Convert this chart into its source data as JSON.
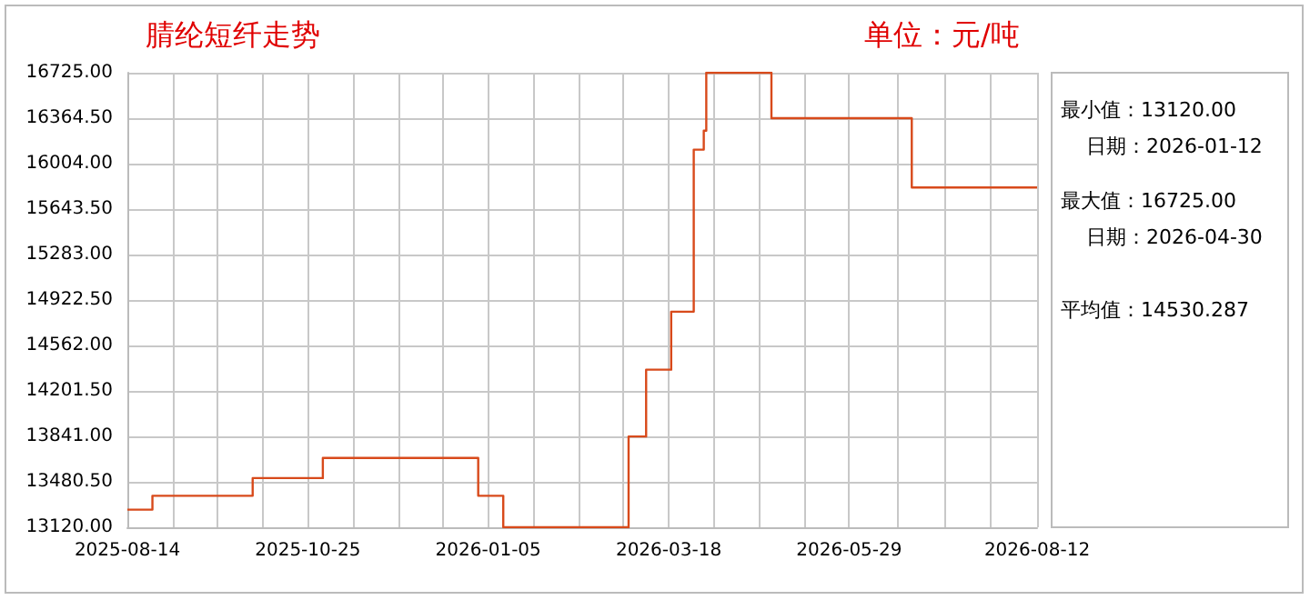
{
  "chart_data": {
    "type": "step",
    "title": "腈纶短纤走势",
    "subtitle": "单位：元/吨",
    "x": [
      "2025-08-14",
      "2025-08-24",
      "2025-10-03",
      "2025-10-31",
      "2026-01-01",
      "2026-01-11",
      "2026-03-02",
      "2026-03-09",
      "2026-03-19",
      "2026-03-28",
      "2026-04-01",
      "2026-04-02",
      "2026-04-28",
      "2026-06-23",
      "2026-08-12"
    ],
    "values": [
      13260,
      13370,
      13510,
      13670,
      13370,
      13120,
      13840,
      14370,
      14830,
      16115,
      16265,
      16725,
      16365,
      15815,
      15815
    ],
    "color": "#d84a1b",
    "xlim": [
      "2025-08-14",
      "2026-08-12"
    ],
    "xticks": [
      "2025-08-14",
      {
        "value": "2025-09-01",
        "label": null
      },
      {
        "value": "2025-09-19",
        "label": null
      },
      {
        "value": "2025-10-07",
        "label": null
      },
      "2025-10-25",
      {
        "value": "2025-11-12",
        "label": null
      },
      {
        "value": "2025-11-30",
        "label": null
      },
      {
        "value": "2025-12-18",
        "label": null
      },
      "2026-01-05",
      {
        "value": "2026-01-23",
        "label": null
      },
      {
        "value": "2026-02-10",
        "label": null
      },
      {
        "value": "2026-02-28",
        "label": null
      },
      "2026-03-18",
      {
        "value": "2026-04-05",
        "label": null
      },
      {
        "value": "2026-04-23",
        "label": null
      },
      {
        "value": "2026-05-11",
        "label": null
      },
      "2026-05-29",
      {
        "value": "2026-06-17",
        "label": null
      },
      {
        "value": "2026-07-06",
        "label": null
      },
      {
        "value": "2026-07-24",
        "label": null
      },
      "2026-08-12"
    ],
    "ylim": [
      13120,
      16725
    ],
    "yticks": [
      {
        "value": 13120,
        "label": "13120.00"
      },
      {
        "value": 13480.5,
        "label": "13480.50"
      },
      {
        "value": 13841,
        "label": "13841.00"
      },
      {
        "value": 14201.5,
        "label": "14201.50"
      },
      {
        "value": 14562,
        "label": "14562.00"
      },
      {
        "value": 14922.5,
        "label": "14922.50"
      },
      {
        "value": 15283,
        "label": "15283.00"
      },
      {
        "value": 15643.5,
        "label": "15643.50"
      },
      {
        "value": 16004,
        "label": "16004.00"
      },
      {
        "value": 16364.5,
        "label": "16364.50"
      },
      {
        "value": 16725,
        "label": "16725.00"
      }
    ],
    "grid": true,
    "annotations": [
      "最小值：13120.00",
      "日期：2026-01-12",
      "最大值：16725.00",
      "日期：2026-04-30",
      "平均值：14530.287"
    ]
  }
}
